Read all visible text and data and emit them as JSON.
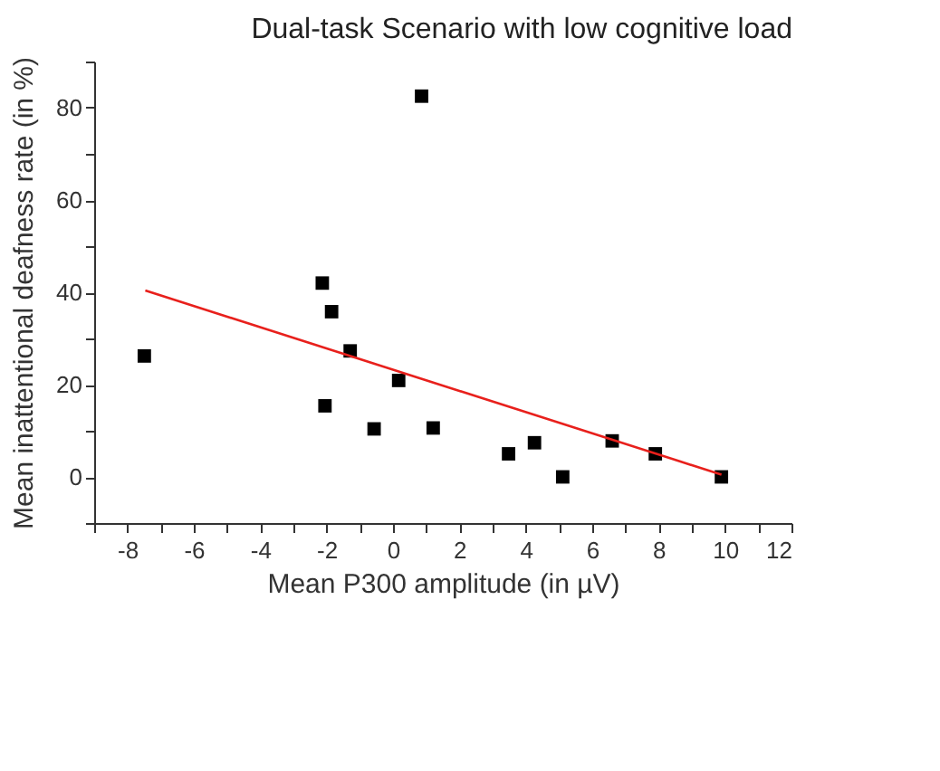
{
  "chart_data": {
    "type": "scatter",
    "title": "Dual-task Scenario with low cognitive load",
    "xlabel": "Mean P300 amplitude (in µV)",
    "ylabel": "Mean inattentional deafness rate (in %)",
    "xlim": [
      -9,
      12
    ],
    "ylim": [
      -10,
      90
    ],
    "xticks": [
      {
        "value": -9,
        "label": null
      },
      -8,
      {
        "value": -7,
        "label": null
      },
      -6,
      {
        "value": -5,
        "label": null
      },
      -4,
      {
        "value": -3,
        "label": null
      },
      -2,
      {
        "value": -1,
        "label": null
      },
      0,
      {
        "value": 1,
        "label": null
      },
      2,
      {
        "value": 3,
        "label": null
      },
      4,
      {
        "value": 5,
        "label": null
      },
      6,
      {
        "value": 7,
        "label": null
      },
      8,
      {
        "value": 9,
        "label": null
      },
      10,
      {
        "value": 11,
        "label": null
      },
      12
    ],
    "yticks": [
      {
        "value": -10,
        "label": null
      },
      0,
      {
        "value": 10,
        "label": null
      },
      20,
      {
        "value": 30,
        "label": null
      },
      40,
      {
        "value": 50,
        "label": null
      },
      60,
      {
        "value": 70,
        "label": null
      },
      80,
      {
        "value": 90,
        "label": null
      }
    ],
    "grid": false,
    "marker": "square",
    "series": [
      {
        "type": "scatter",
        "color": "#000000",
        "x": [
          -7.49,
          -2.13,
          -1.85,
          -1.29,
          -2.05,
          -0.57,
          0.17,
          0.86,
          1.21,
          3.48,
          4.26,
          5.11,
          6.6,
          7.9,
          9.89
        ],
        "values": [
          26.2,
          42.0,
          35.8,
          27.3,
          15.4,
          10.4,
          20.9,
          82.5,
          10.6,
          5.0,
          7.4,
          0,
          7.8,
          5.0,
          0
        ]
      },
      {
        "type": "line",
        "color": "#e8201c",
        "line_style": "solid",
        "marker": "none",
        "x": [
          -7.46,
          9.89
        ],
        "values": [
          40.4,
          0.5
        ]
      }
    ]
  }
}
